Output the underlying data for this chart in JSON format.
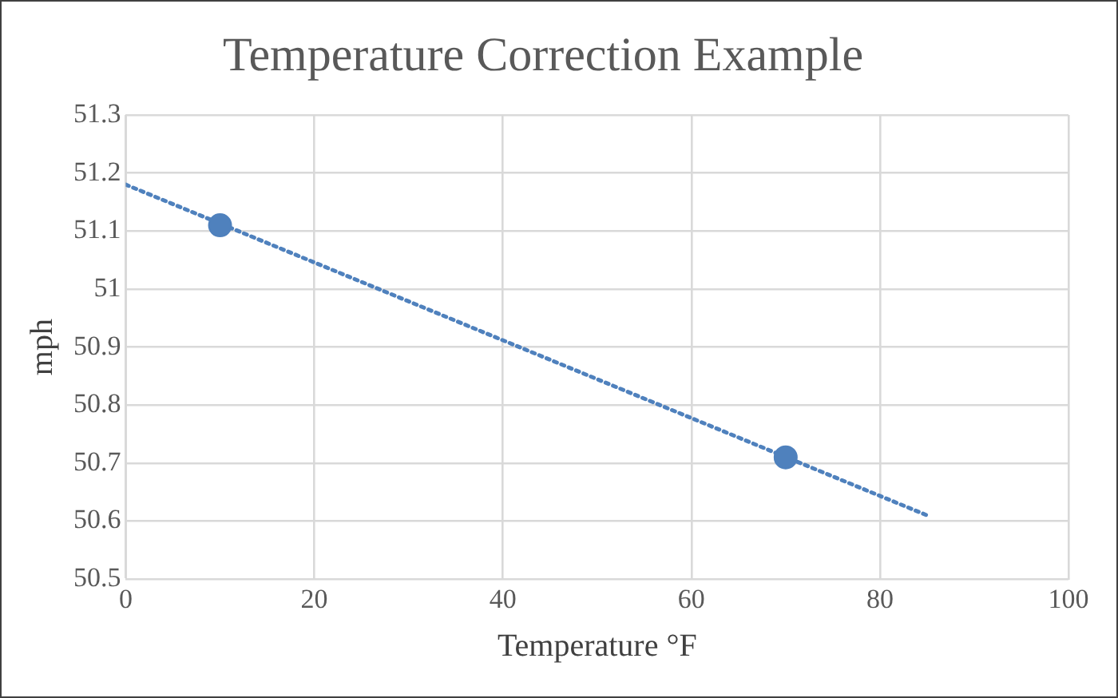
{
  "chart_data": {
    "type": "scatter",
    "title": "Temperature Correction Example",
    "xlabel": "Temperature °F",
    "ylabel": "mph",
    "xlim": [
      0,
      100
    ],
    "xticks": [
      0,
      20,
      40,
      60,
      80,
      100
    ],
    "ylim": [
      50.5,
      51.3
    ],
    "yticks": [
      50.5,
      50.6,
      50.7,
      50.8,
      50.9,
      51,
      51.1,
      51.2,
      51.3
    ],
    "grid": true,
    "marker": "circle",
    "series": [
      {
        "type": "scatter",
        "color": "#4f81bd",
        "x": [
          10,
          70
        ],
        "values": [
          51.11,
          50.71
        ]
      },
      {
        "type": "line",
        "color": "#4f81bd",
        "x": [
          0,
          85
        ],
        "values": [
          51.18,
          50.61
        ],
        "line_style": "dotted",
        "marker": "none"
      }
    ]
  }
}
